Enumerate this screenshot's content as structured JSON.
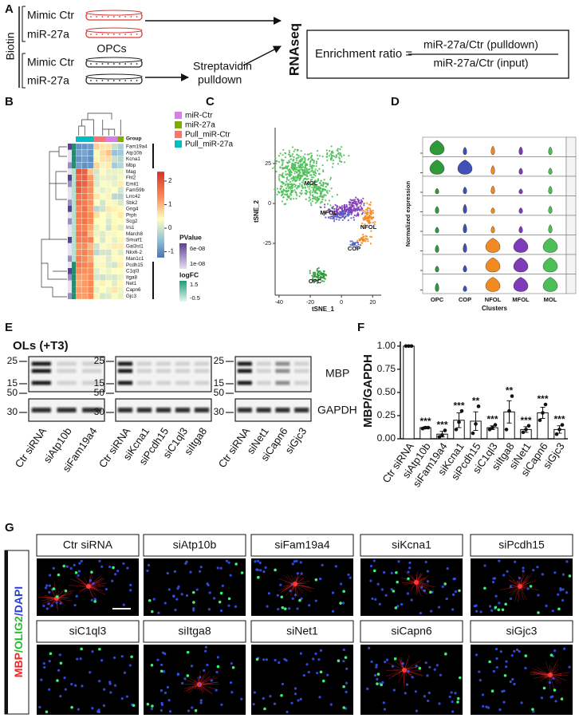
{
  "panel_a": {
    "label": "A",
    "biotin": "Biotin",
    "groups": [
      {
        "mimic": "Mimic Ctr",
        "mir": "miR-27a"
      },
      {
        "mimic": "Mimic Ctr",
        "mir": "miR-27a"
      }
    ],
    "cells": "OPCs",
    "pulldown": [
      "Streptavidin",
      "pulldown"
    ],
    "rnaseq": "RNAseq",
    "ratio": {
      "lhs": "Enrichment ratio =",
      "numerator": "miR-27a/Ctr (pulldown)",
      "denominator": "miR-27a/Ctr (input)"
    }
  },
  "panel_b": {
    "label": "B",
    "group_title": "Group",
    "genes": [
      "Fam19a4",
      "Atp10b",
      "Kcna1",
      "Mbp",
      "Mag",
      "Fhl2",
      "Emil1",
      "Fam59b",
      "Lrrc42",
      "Sbk2",
      "Gng4",
      "Prph",
      "Scg2",
      "Irs1",
      "March8",
      "Smurf1",
      "Gal3st1",
      "Nkx6-2",
      "Man1c1",
      "Pcdh15",
      "C1ql3",
      "Itga8",
      "Net1",
      "Capn6",
      "Gjc3"
    ],
    "groups": [
      {
        "name": "miR-Ctr",
        "color": "#d77fe8"
      },
      {
        "name": "miR-27a",
        "color": "#7cae00"
      },
      {
        "name": "Pull_miR-Ctr",
        "color": "#f8766d"
      },
      {
        "name": "Pull_miR-27a",
        "color": "#00bfc4"
      }
    ],
    "scale_ticks": [
      2,
      1,
      0,
      -1
    ],
    "pvalue": {
      "title": "PValue",
      "ticks": [
        "6e-08",
        "1e-08"
      ]
    },
    "logfc": {
      "title": "logFC",
      "ticks": [
        1.5,
        -0.5
      ]
    }
  },
  "panel_c": {
    "label": "C",
    "x_label": "tSNE_1",
    "y_label": "tSNE_2",
    "xlim": [
      -42.5,
      25.5
    ],
    "ylim": [
      -57.5,
      47.5
    ],
    "xticks": [
      -40,
      -20,
      0,
      20
    ],
    "yticks": [
      25,
      0,
      -25
    ],
    "clusters": [
      {
        "name": "MOL",
        "color": "#4cbf57"
      },
      {
        "name": "MFOL",
        "color": "#7e3bb8"
      },
      {
        "name": "NFOL",
        "color": "#f28a22"
      },
      {
        "name": "COP",
        "color": "#4a63c9"
      },
      {
        "name": "OPC",
        "color": "#2e9a38"
      }
    ]
  },
  "panel_d": {
    "label": "D",
    "y_label": "Normalized expression",
    "x_label": "Clusters",
    "clusters": [
      "OPC",
      "COP",
      "NFOL",
      "MFOL",
      "MOL"
    ]
  },
  "panel_e": {
    "label": "E",
    "title": "OLs (+T3)",
    "bands": [
      "MBP",
      "GAPDH"
    ],
    "blots": [
      {
        "ladder": [
          25,
          15,
          50,
          30
        ],
        "lanes": [
          "Ctr siRNA",
          "siAtp10b",
          "siFam19a4"
        ]
      },
      {
        "ladder": [
          25,
          15,
          50,
          30
        ],
        "lanes": [
          "Ctr siRNA",
          "siKcna1",
          "siPcdh15",
          "siC1ql3",
          "siItga8"
        ]
      },
      {
        "ladder": [
          25,
          15,
          50,
          30
        ],
        "lanes": [
          "Ctr siRNA",
          "siNet1",
          "siCapn6",
          "siGjc3"
        ]
      }
    ]
  },
  "panel_f": {
    "label": "F",
    "type": "bar",
    "y_label": "MBP/GAPDH",
    "color": "#ffffff",
    "categories": [
      "Ctr siRNA",
      "siAtp10b",
      "siFam19a4",
      "siKcna1",
      "siPcdh15",
      "siC1ql3",
      "siItga8",
      "siNet1",
      "siCapn6",
      "siGjc3"
    ],
    "values": [
      1.0,
      0.12,
      0.05,
      0.2,
      0.19,
      0.12,
      0.29,
      0.1,
      0.28,
      0.1
    ],
    "errors": [
      0,
      0.01,
      0.03,
      0.08,
      0.1,
      0.02,
      0.12,
      0.03,
      0.06,
      0.04
    ],
    "points": [
      [
        1,
        1,
        1
      ],
      [
        0.11,
        0.12,
        0.12
      ],
      [
        0.02,
        0.04,
        0.09
      ],
      [
        0.1,
        0.18,
        0.3
      ],
      [
        0.06,
        0.16,
        0.35
      ],
      [
        0.1,
        0.12,
        0.15
      ],
      [
        0.1,
        0.3,
        0.46
      ],
      [
        0.07,
        0.1,
        0.14
      ],
      [
        0.2,
        0.28,
        0.37
      ],
      [
        0.05,
        0.1,
        0.15
      ]
    ],
    "significance": [
      null,
      "***",
      "***",
      "***",
      "**",
      "***",
      "**",
      "***",
      "***",
      "***"
    ],
    "ylim": [
      0,
      1.05
    ],
    "yticks": [
      {
        "value": 0,
        "label": "0.00"
      },
      {
        "value": 0.25,
        "label": "0.25"
      },
      {
        "value": 0.5,
        "label": "0.50"
      },
      {
        "value": 0.75,
        "label": "0.75"
      },
      {
        "value": 1.0,
        "label": "1.00"
      }
    ]
  },
  "panel_g": {
    "label": "G",
    "stain": [
      {
        "text": "MBP",
        "color": "#ff2020"
      },
      {
        "text": "/OLIG2",
        "color": "#22c02a"
      },
      {
        "text": "/DAPI",
        "color": "#2a3de0"
      }
    ],
    "tiles": [
      "Ctr siRNA",
      "siAtp10b",
      "siFam19a4",
      "siKcna1",
      "siPcdh15",
      "siC1ql3",
      "siItga8",
      "siNet1",
      "siCapn6",
      "siGjc3"
    ]
  }
}
